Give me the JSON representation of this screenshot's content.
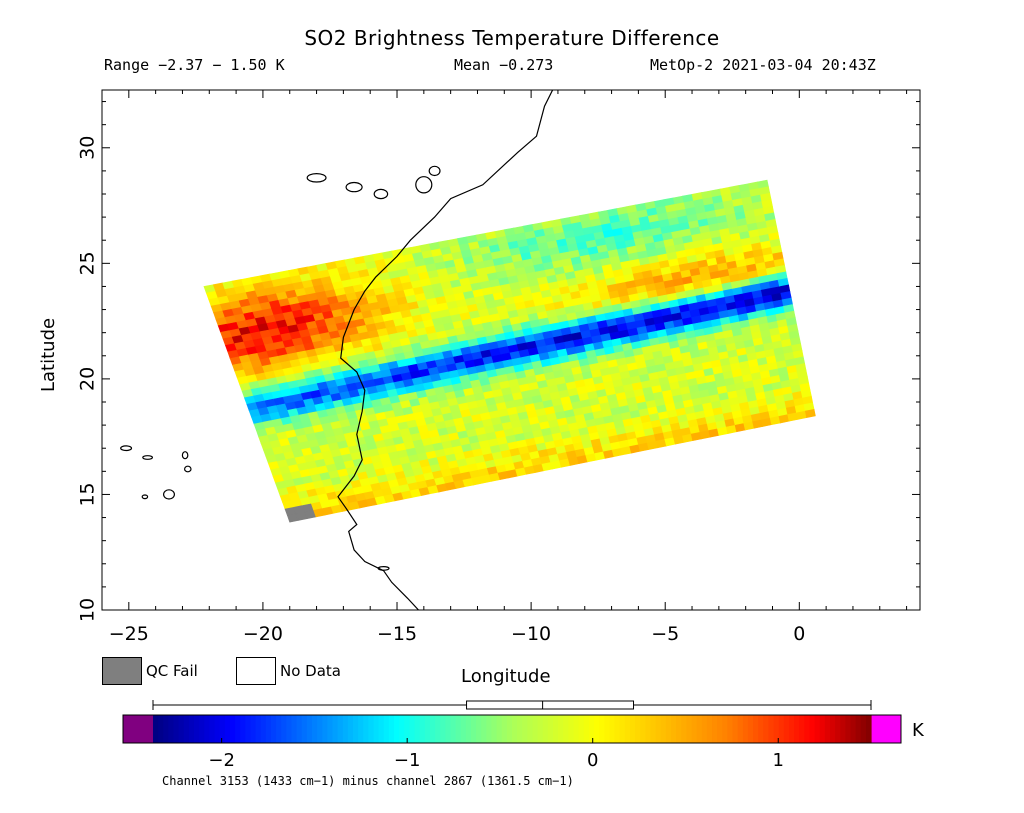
{
  "chart_data": {
    "type": "heatmap",
    "title": "SO2 Brightness Temperature Difference",
    "header": {
      "range": "Range −2.37 − 1.50 K",
      "mean": "Mean −0.273",
      "source": "MetOp-2 2021-03-04 20:43Z"
    },
    "xlabel": "Longitude",
    "ylabel": "Latitude",
    "xlim": [
      -26,
      4.5
    ],
    "ylim": [
      10,
      32.5
    ],
    "xticks": [
      -25,
      -20,
      -15,
      -10,
      -5,
      0
    ],
    "xtick_labels": [
      "−25",
      "−20",
      "−15",
      "−10",
      "−5",
      "0"
    ],
    "yticks": [
      10,
      15,
      20,
      25,
      30
    ],
    "ytick_labels": [
      "10",
      "15",
      "20",
      "25",
      "30"
    ],
    "swath_corners": {
      "top_left": [
        -22.2,
        24.0
      ],
      "top_right": [
        -1.2,
        28.6
      ],
      "bottom_right": [
        0.6,
        18.4
      ],
      "bottom_left": [
        -19.0,
        13.8
      ]
    },
    "features": [
      {
        "description": "strong negative band (SO2 signal)",
        "lat_start": 21.7,
        "lat_end": 19.4,
        "value": -2.2
      },
      {
        "description": "warm positive region NW",
        "lon": -20,
        "lat": 23,
        "value": 1.3
      },
      {
        "description": "positive region E",
        "lon": -4,
        "lat": 23,
        "value": 0.6
      }
    ],
    "colorbar": {
      "min": -2.37,
      "max": 1.5,
      "unit": "K",
      "ticks": [
        -2,
        -1,
        0,
        1
      ],
      "tick_labels": [
        "−2",
        "−1",
        "0",
        "1"
      ],
      "under_color": "#800080",
      "over_color": "#ff00ff",
      "boxplot": {
        "min": -2.37,
        "q1": -0.68,
        "median": -0.27,
        "q3": 0.22,
        "max": 1.5
      }
    },
    "legend": [
      {
        "label": "QC Fail",
        "color": "#7f7f7f"
      },
      {
        "label": "No Data",
        "color": "#ffffff"
      }
    ],
    "footnote": "Channel 3153 (1433 cm−1) minus channel 2867 (1361.5 cm−1)",
    "coastline_color": "#000000"
  }
}
